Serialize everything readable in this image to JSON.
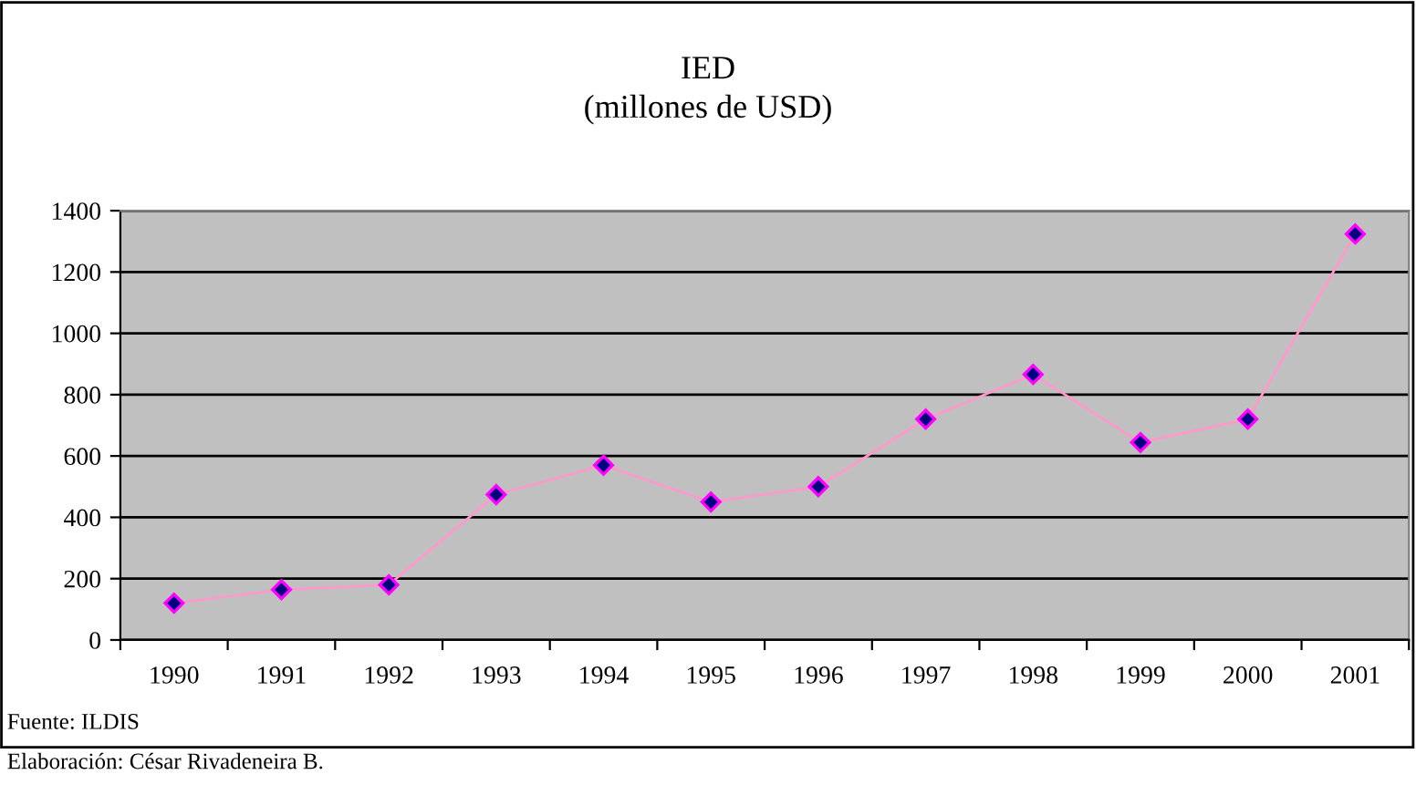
{
  "chart_data": {
    "type": "line",
    "title": "IED\n(millones de USD)",
    "categories": [
      "1990",
      "1991",
      "1992",
      "1993",
      "1994",
      "1995",
      "1996",
      "1997",
      "1998",
      "1999",
      "2000",
      "2001"
    ],
    "series": [
      {
        "color": "#ff99cc",
        "values": [
          120,
          164,
          180,
          474,
          570,
          450,
          500,
          720,
          866,
          644,
          720,
          1324
        ]
      }
    ],
    "ylim": [
      0,
      1400
    ],
    "yticks": [
      0,
      200,
      400,
      600,
      800,
      1000,
      1200,
      1400
    ],
    "grid": "y",
    "marker": "diamond",
    "line_style": "solid",
    "annotations": [
      "Fuente: ILDIS",
      "Elaboración: César Rivadeneira B."
    ]
  }
}
